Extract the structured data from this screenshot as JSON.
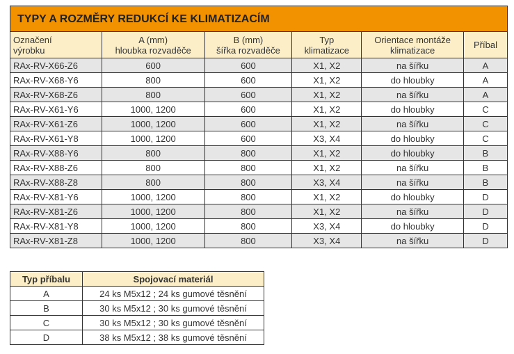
{
  "title": "TYPY A ROZMĚRY REDUKCÍ KE KLIMATIZACÍM",
  "headers": [
    [
      "Označení",
      "výrobku"
    ],
    [
      "A (mm)",
      "hloubka rozvaděče"
    ],
    [
      "B (mm)",
      "šířka rozvaděče"
    ],
    [
      "Typ",
      "klimatizace"
    ],
    [
      "Orientace montáže",
      "klimatizace"
    ],
    [
      "Příbal",
      ""
    ]
  ],
  "rows": [
    [
      "RAx-RV-X66-Z6",
      "600",
      "600",
      "X1, X2",
      "na šířku",
      "A"
    ],
    [
      "RAx-RV-X68-Y6",
      "800",
      "600",
      "X1, X2",
      "do hloubky",
      "A"
    ],
    [
      "RAx-RV-X68-Z6",
      "800",
      "600",
      "X1, X2",
      "na šířku",
      "A"
    ],
    [
      "RAx-RV-X61-Y6",
      "1000, 1200",
      "600",
      "X1, X2",
      "do hloubky",
      "C"
    ],
    [
      "RAx-RV-X61-Z6",
      "1000, 1200",
      "600",
      "X1, X2",
      "na šířku",
      "C"
    ],
    [
      "RAx-RV-X61-Y8",
      "1000, 1200",
      "600",
      "X3, X4",
      "do hloubky",
      "C"
    ],
    [
      "RAx-RV-X88-Y6",
      "800",
      "800",
      "X1, X2",
      "do hloubky",
      "B"
    ],
    [
      "RAx-RV-X88-Z6",
      "800",
      "800",
      "X1, X2",
      "na šířku",
      "B"
    ],
    [
      "RAx-RV-X88-Z8",
      "800",
      "800",
      "X3, X4",
      "na šířku",
      "B"
    ],
    [
      "RAx-RV-X81-Y6",
      "1000, 1200",
      "800",
      "X1, X2",
      "do hloubky",
      "D"
    ],
    [
      "RAx-RV-X81-Z6",
      "1000, 1200",
      "800",
      "X1, X2",
      "na šířku",
      "D"
    ],
    [
      "RAx-RV-X81-Y8",
      "1000, 1200",
      "800",
      "X3, X4",
      "do hloubky",
      "D"
    ],
    [
      "RAx-RV-X81-Z8",
      "1000, 1200",
      "800",
      "X3, X4",
      "na šířku",
      "D"
    ]
  ],
  "pack": {
    "headers": [
      "Typ příbalu",
      "Spojovací materiál"
    ],
    "rows": [
      [
        "A",
        "24 ks M5x12 ; 24 ks gumové těsnění"
      ],
      [
        "B",
        "30 ks M5x12 ; 30 ks gumové těsnění"
      ],
      [
        "C",
        "30 ks M5x12 ; 30 ks gumové těsnění"
      ],
      [
        "D",
        "38 ks M5x12 ; 38 ks gumové těsnění"
      ]
    ]
  },
  "colors": {
    "title_bg": "#f39200",
    "header_bg": "#fcefc7",
    "stripe": "#e6e6e6"
  }
}
